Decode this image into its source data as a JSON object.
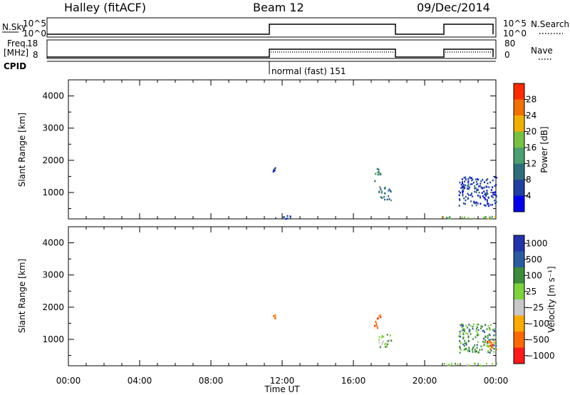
{
  "header": {
    "title": "Halley (fitACF)",
    "beam": "Beam 12",
    "date": "09/Dec/2014"
  },
  "strips": {
    "nsky_label": "N.Sky",
    "nsky_ticks": [
      "10^5",
      "10^0"
    ],
    "nsearch_label": "N.Search",
    "nsearch_ticks": [
      "10^5",
      "10^0"
    ],
    "freq_label_1": "Freq.",
    "freq_label_2": "[MHz]",
    "freq_ticks": [
      "18",
      "8"
    ],
    "nave_label": "Nave",
    "nave_ticks": [
      "80",
      "0"
    ],
    "cpid_label": "CPID",
    "cpid_text": "normal (fast) 151"
  },
  "colors": {
    "power_scale": [
      "#0000ee",
      "#2040a0",
      "#2e6e7c",
      "#4aa070",
      "#78c040",
      "#f0b000",
      "#f07000",
      "#ff2a00"
    ],
    "velocity_scale": [
      "#ff1a1a",
      "#ff6a00",
      "#ffaa00",
      "#c8c8c8",
      "#7ed23c",
      "#3c8c3c",
      "#2c5ca0",
      "#2233aa"
    ]
  },
  "chart_data": [
    {
      "type": "heatmap",
      "name": "power_panel",
      "ylabel": "Slant Range [km]",
      "xlabel": "",
      "ylim": [
        180,
        4500
      ],
      "yticks": [
        "1000",
        "2000",
        "3000",
        "4000"
      ],
      "xlim": [
        0,
        24
      ],
      "colorbar_label": "Power [dB]",
      "colorbar_ticks": [
        "4",
        "8",
        "12",
        "16",
        "20",
        "24",
        "28"
      ],
      "echo_regions": [
        {
          "t": [
            11.45,
            11.65
          ],
          "r": [
            1650,
            1800
          ],
          "level": 1
        },
        {
          "t": [
            17.15,
            17.5
          ],
          "r": [
            1350,
            1800
          ],
          "level": 3
        },
        {
          "t": [
            17.4,
            18.1
          ],
          "r": [
            750,
            1200
          ],
          "level": 2
        },
        {
          "t": [
            21.9,
            24.0
          ],
          "r": [
            600,
            1500
          ],
          "level": 1
        },
        {
          "t": [
            21.0,
            24.0
          ],
          "r": [
            200,
            280
          ],
          "level": 4
        },
        {
          "t": [
            11.5,
            12.5
          ],
          "r": [
            200,
            300
          ],
          "level": 1
        }
      ]
    },
    {
      "type": "heatmap",
      "name": "velocity_panel",
      "ylabel": "Slant Range [km]",
      "xlabel": "Time UT",
      "ylim": [
        180,
        4500
      ],
      "yticks": [
        "1000",
        "2000",
        "3000",
        "4000"
      ],
      "xlim": [
        0,
        24
      ],
      "xticks": [
        "00:00",
        "04:00",
        "08:00",
        "12:00",
        "16:00",
        "20:00",
        "00:00"
      ],
      "colorbar_label": "Velocity [m s⁻¹]",
      "colorbar_ticks": [
        "1000",
        "500",
        "100",
        "25",
        "−25",
        "−100",
        "−500",
        "−1000"
      ],
      "echo_regions": [
        {
          "t": [
            11.45,
            11.65
          ],
          "r": [
            1650,
            1800
          ],
          "level": 1
        },
        {
          "t": [
            17.15,
            17.5
          ],
          "r": [
            1350,
            1800
          ],
          "level": 1
        },
        {
          "t": [
            17.4,
            18.1
          ],
          "r": [
            750,
            1200
          ],
          "level": 4
        },
        {
          "t": [
            21.9,
            24.0
          ],
          "r": [
            600,
            1500
          ],
          "level": 5
        },
        {
          "t": [
            23.4,
            24.0
          ],
          "r": [
            700,
            1000
          ],
          "level": 1
        },
        {
          "t": [
            21.0,
            24.0
          ],
          "r": [
            200,
            280
          ],
          "level": 4
        }
      ]
    }
  ]
}
